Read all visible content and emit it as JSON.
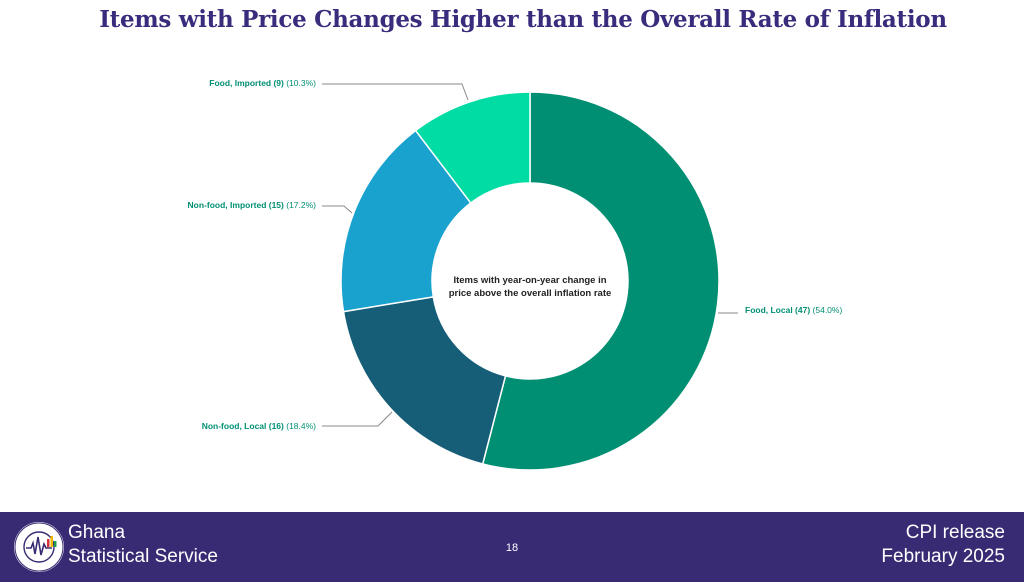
{
  "title": "Items with Price Changes Higher than the Overall Rate of Inflation",
  "chart_data": {
    "type": "pie",
    "donut": true,
    "center_label": [
      "Items with year-on-year change in",
      "price above the overall inflation rate"
    ],
    "slices": [
      {
        "category": "Food, Local",
        "count": 47,
        "count_text": "(47)",
        "percent": 54.0,
        "percent_text": "(54.0%)",
        "color": "#008f73"
      },
      {
        "category": "Non-food, Local",
        "count": 16,
        "count_text": "(16)",
        "percent": 18.4,
        "percent_text": "(18.4%)",
        "color": "#165e78"
      },
      {
        "category": "Non-food, Imported",
        "count": 15,
        "count_text": "(15)",
        "percent": 17.2,
        "percent_text": "(17.2%)",
        "color": "#1aa2cf"
      },
      {
        "category": "Food, Imported",
        "count": 9,
        "count_text": "(9)",
        "percent": 10.3,
        "percent_text": "(10.3%)",
        "color": "#00dca4"
      }
    ],
    "label_color": "#008f73"
  },
  "footer": {
    "org_line1": "Ghana",
    "org_line2": "Statistical Service",
    "page_number": "18",
    "release_line1": "CPI release",
    "release_line2": "February  2025",
    "logo_text": "STATISTICAL SERVICE",
    "logo_bottom_text": "GHANA",
    "background": "#382b73"
  }
}
